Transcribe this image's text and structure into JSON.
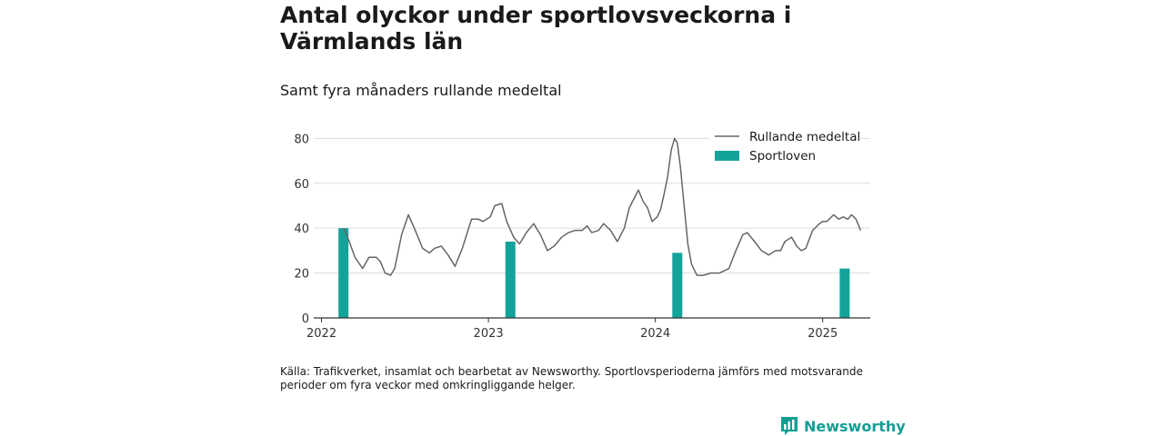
{
  "title": "Antal olyckor under sportlovsveckorna i Värmlands län",
  "subtitle": "Samt fyra månaders rullande medeltal",
  "source": "Källa: Trafikverket, insamlat och bearbetat av Newsworthy. Sportlovsperioderna jämförs med motsvarande perioder om fyra veckor med omkringliggande helger.",
  "brand": {
    "name": "Newsworthy",
    "icon": "bar-chart-logo-icon"
  },
  "colors": {
    "line": "#666666",
    "bar": "#14a39a",
    "grid": "#dcdcdc",
    "brand": "#139e94"
  },
  "chart_data": {
    "type": "bar+line",
    "ylim": [
      0,
      85
    ],
    "yticks": [
      0,
      20,
      40,
      60,
      80
    ],
    "xticks": [
      "2022",
      "2023",
      "2024",
      "2025"
    ],
    "xlim": [
      "2021-12-15",
      "2025-04-15"
    ],
    "grid": "horizontal",
    "legend_position": "top-right",
    "legend": [
      {
        "name": "Rullande medeltal",
        "kind": "line"
      },
      {
        "name": "Sportloven",
        "kind": "bar"
      }
    ],
    "bars": [
      {
        "date": "2022-02-18",
        "value": 40
      },
      {
        "date": "2023-02-18",
        "value": 34
      },
      {
        "date": "2024-02-18",
        "value": 29
      },
      {
        "date": "2025-02-18",
        "value": 22
      }
    ],
    "line": [
      [
        "2022-02-18",
        40
      ],
      [
        "2022-03-01",
        35
      ],
      [
        "2022-03-15",
        27
      ],
      [
        "2022-04-01",
        22
      ],
      [
        "2022-04-15",
        27
      ],
      [
        "2022-05-01",
        27
      ],
      [
        "2022-05-10",
        25
      ],
      [
        "2022-05-20",
        20
      ],
      [
        "2022-06-01",
        19
      ],
      [
        "2022-06-10",
        22
      ],
      [
        "2022-06-25",
        37
      ],
      [
        "2022-07-10",
        46
      ],
      [
        "2022-07-25",
        39
      ],
      [
        "2022-08-10",
        31
      ],
      [
        "2022-08-25",
        29
      ],
      [
        "2022-09-05",
        31
      ],
      [
        "2022-09-20",
        32
      ],
      [
        "2022-10-05",
        28
      ],
      [
        "2022-10-20",
        23
      ],
      [
        "2022-11-05",
        31
      ],
      [
        "2022-11-25",
        44
      ],
      [
        "2022-12-10",
        44
      ],
      [
        "2022-12-20",
        43
      ],
      [
        "2023-01-05",
        45
      ],
      [
        "2023-01-15",
        50
      ],
      [
        "2023-01-30",
        51
      ],
      [
        "2023-02-10",
        43
      ],
      [
        "2023-02-25",
        36
      ],
      [
        "2023-03-10",
        33
      ],
      [
        "2023-03-25",
        38
      ],
      [
        "2023-04-10",
        42
      ],
      [
        "2023-04-25",
        37
      ],
      [
        "2023-05-10",
        30
      ],
      [
        "2023-05-25",
        32
      ],
      [
        "2023-06-10",
        36
      ],
      [
        "2023-06-25",
        38
      ],
      [
        "2023-07-10",
        39
      ],
      [
        "2023-07-25",
        39
      ],
      [
        "2023-08-05",
        41
      ],
      [
        "2023-08-15",
        38
      ],
      [
        "2023-08-30",
        39
      ],
      [
        "2023-09-10",
        42
      ],
      [
        "2023-09-25",
        39
      ],
      [
        "2023-10-10",
        34
      ],
      [
        "2023-10-25",
        40
      ],
      [
        "2023-11-05",
        49
      ],
      [
        "2023-11-20",
        55
      ],
      [
        "2023-11-25",
        57
      ],
      [
        "2023-12-05",
        52
      ],
      [
        "2023-12-15",
        49
      ],
      [
        "2023-12-25",
        43
      ],
      [
        "2024-01-05",
        45
      ],
      [
        "2024-01-12",
        48
      ],
      [
        "2024-01-20",
        55
      ],
      [
        "2024-01-28",
        63
      ],
      [
        "2024-02-05",
        75
      ],
      [
        "2024-02-12",
        80
      ],
      [
        "2024-02-18",
        78
      ],
      [
        "2024-02-25",
        67
      ],
      [
        "2024-03-05",
        48
      ],
      [
        "2024-03-12",
        33
      ],
      [
        "2024-03-20",
        24
      ],
      [
        "2024-04-01",
        19
      ],
      [
        "2024-04-15",
        19
      ],
      [
        "2024-05-01",
        20
      ],
      [
        "2024-05-20",
        20
      ],
      [
        "2024-06-10",
        22
      ],
      [
        "2024-06-25",
        30
      ],
      [
        "2024-07-10",
        37
      ],
      [
        "2024-07-20",
        38
      ],
      [
        "2024-08-05",
        34
      ],
      [
        "2024-08-20",
        30
      ],
      [
        "2024-09-05",
        28
      ],
      [
        "2024-09-20",
        30
      ],
      [
        "2024-10-01",
        30
      ],
      [
        "2024-10-10",
        34
      ],
      [
        "2024-10-25",
        36
      ],
      [
        "2024-11-05",
        32
      ],
      [
        "2024-11-15",
        30
      ],
      [
        "2024-11-25",
        31
      ],
      [
        "2024-12-10",
        39
      ],
      [
        "2024-12-25",
        42
      ],
      [
        "2025-01-01",
        43
      ],
      [
        "2025-01-10",
        43
      ],
      [
        "2025-01-25",
        46
      ],
      [
        "2025-02-05",
        44
      ],
      [
        "2025-02-15",
        45
      ],
      [
        "2025-02-25",
        44
      ],
      [
        "2025-03-05",
        46
      ],
      [
        "2025-03-15",
        44
      ],
      [
        "2025-03-25",
        39
      ]
    ]
  }
}
